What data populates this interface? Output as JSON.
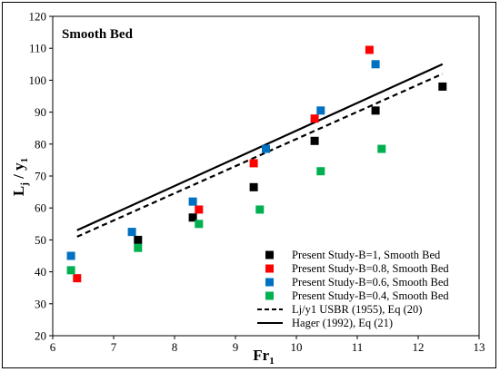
{
  "chart_data": {
    "type": "scatter",
    "title": "Smooth Bed",
    "xlabel": "Fr",
    "xlabel_sub": "1",
    "ylabel": "L",
    "ylabel_sub1": "j",
    "ylabel_mid": " / y",
    "ylabel_sub2": "1",
    "xlim": [
      6,
      13
    ],
    "ylim": [
      20,
      120
    ],
    "x_ticks": [
      "6",
      "7",
      "8",
      "9",
      "10",
      "11",
      "12",
      "13"
    ],
    "y_ticks": [
      "20",
      "30",
      "40",
      "50",
      "60",
      "70",
      "80",
      "90",
      "100",
      "110",
      "120"
    ],
    "legend_position": "bottom-right",
    "grid": false,
    "series": [
      {
        "name": "Present Study-B=1, Smooth Bed",
        "kind": "marker",
        "color": "#000000",
        "points": [
          [
            7.4,
            50
          ],
          [
            8.3,
            57
          ],
          [
            9.3,
            66.5
          ],
          [
            10.3,
            81
          ],
          [
            11.3,
            90.5
          ],
          [
            12.4,
            98
          ]
        ]
      },
      {
        "name": "Present Study-B=0.8, Smooth Bed",
        "kind": "marker",
        "color": "#ff0000",
        "points": [
          [
            6.4,
            38
          ],
          [
            8.4,
            59.5
          ],
          [
            9.3,
            74
          ],
          [
            10.3,
            88
          ],
          [
            11.2,
            109.5
          ]
        ]
      },
      {
        "name": "Present Study-B=0.6, Smooth Bed",
        "kind": "marker",
        "color": "#0070c0",
        "points": [
          [
            6.3,
            45
          ],
          [
            7.3,
            52.5
          ],
          [
            8.3,
            62
          ],
          [
            9.5,
            78.5
          ],
          [
            10.4,
            90.5
          ],
          [
            11.3,
            105
          ]
        ]
      },
      {
        "name": "Present Study-B=0.4, Smooth Bed",
        "kind": "marker",
        "color": "#00b050",
        "points": [
          [
            6.3,
            40.5
          ],
          [
            7.4,
            47.5
          ],
          [
            8.4,
            55
          ],
          [
            9.4,
            59.5
          ],
          [
            10.4,
            71.5
          ],
          [
            11.4,
            78.5
          ]
        ]
      },
      {
        "name": "Lj/y1 USBR (1955), Eq (20)",
        "kind": "dashed-line",
        "color": "#000000",
        "points": [
          [
            6.4,
            51
          ],
          [
            12.4,
            102
          ]
        ]
      },
      {
        "name": "Hager (1992), Eq (21)",
        "kind": "solid-line",
        "color": "#000000",
        "points": [
          [
            6.4,
            53
          ],
          [
            12.4,
            105
          ]
        ]
      }
    ]
  }
}
